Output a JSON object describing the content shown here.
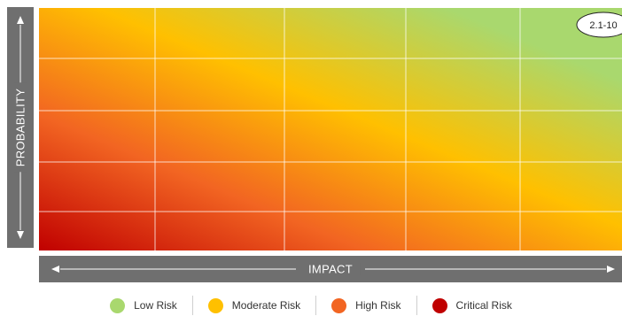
{
  "chart_data": {
    "type": "heatmap",
    "xlabel": "IMPACT",
    "ylabel": "PROBABILITY",
    "grid": true,
    "columns": 5,
    "rows": 5,
    "gradient": {
      "direction": "bottom-left to top-right",
      "stops": [
        "#c00000",
        "#f26522",
        "#ffc000",
        "#a9d86e"
      ]
    },
    "callout": {
      "label": "2.1-10",
      "position": "top-right"
    },
    "legend": {
      "position": "bottom",
      "items": [
        {
          "label": "Low Risk",
          "color": "#a9d86e"
        },
        {
          "label": "Moderate Risk",
          "color": "#ffc000"
        },
        {
          "label": "High Risk",
          "color": "#f26522"
        },
        {
          "label": "Critical Risk",
          "color": "#c00000"
        }
      ]
    }
  }
}
